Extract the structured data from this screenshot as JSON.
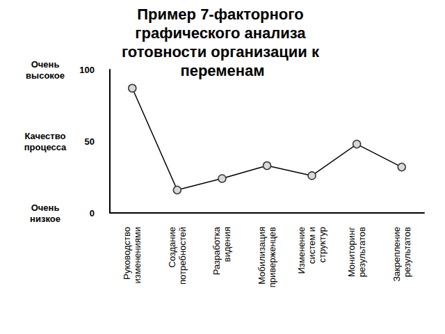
{
  "chart_data": {
    "type": "line",
    "title": "Пример 7-факторного графического анализа готовности организации к переменам",
    "categories": [
      "Руководство\nизменениями",
      "Создание\nпотребностей",
      "Разработка\nвидения",
      "Мобилизация\nприверженцев",
      "Изменение\nсистем и\nструктур",
      "Мониторинг\nрезультатов",
      "Закрепление\nрезультатов"
    ],
    "values": [
      87,
      16,
      24,
      33,
      26,
      48,
      32
    ],
    "color": "#000000",
    "marker": "circle",
    "ylim": [
      0,
      100
    ],
    "yticks": [
      0,
      50,
      100
    ],
    "grid": false,
    "annotations": [
      {
        "text": "Очень\nвысокое",
        "y": 100
      },
      {
        "text": "Качество\nпроцесса",
        "y": 50
      },
      {
        "text": "Очень\nнизкое",
        "y": 0
      }
    ]
  }
}
